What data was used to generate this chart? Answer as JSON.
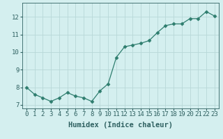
{
  "x": [
    0,
    1,
    2,
    3,
    4,
    5,
    6,
    7,
    8,
    9,
    10,
    11,
    12,
    13,
    14,
    15,
    16,
    17,
    18,
    19,
    20,
    21,
    22,
    23
  ],
  "y": [
    8.0,
    7.6,
    7.4,
    7.2,
    7.4,
    7.7,
    7.5,
    7.4,
    7.2,
    7.8,
    8.2,
    9.7,
    10.3,
    10.4,
    10.5,
    10.65,
    11.1,
    11.5,
    11.6,
    11.6,
    11.9,
    11.9,
    12.3,
    12.05
  ],
  "line_color": "#2e7d6e",
  "marker": "D",
  "marker_size": 2.5,
  "bg_color": "#d4efef",
  "grid_color": "#b8d8d8",
  "xlabel": "Humidex (Indice chaleur)",
  "xlabel_fontsize": 7.5,
  "tick_label_color": "#2e6060",
  "xlim": [
    -0.5,
    23.5
  ],
  "ylim": [
    6.8,
    12.8
  ],
  "yticks": [
    7,
    8,
    9,
    10,
    11,
    12
  ],
  "xtick_labels": [
    "0",
    "1",
    "2",
    "3",
    "4",
    "5",
    "6",
    "7",
    "8",
    "9",
    "10",
    "11",
    "12",
    "13",
    "14",
    "15",
    "16",
    "17",
    "18",
    "19",
    "20",
    "21",
    "22",
    "23"
  ],
  "tick_fontsize": 6.5
}
